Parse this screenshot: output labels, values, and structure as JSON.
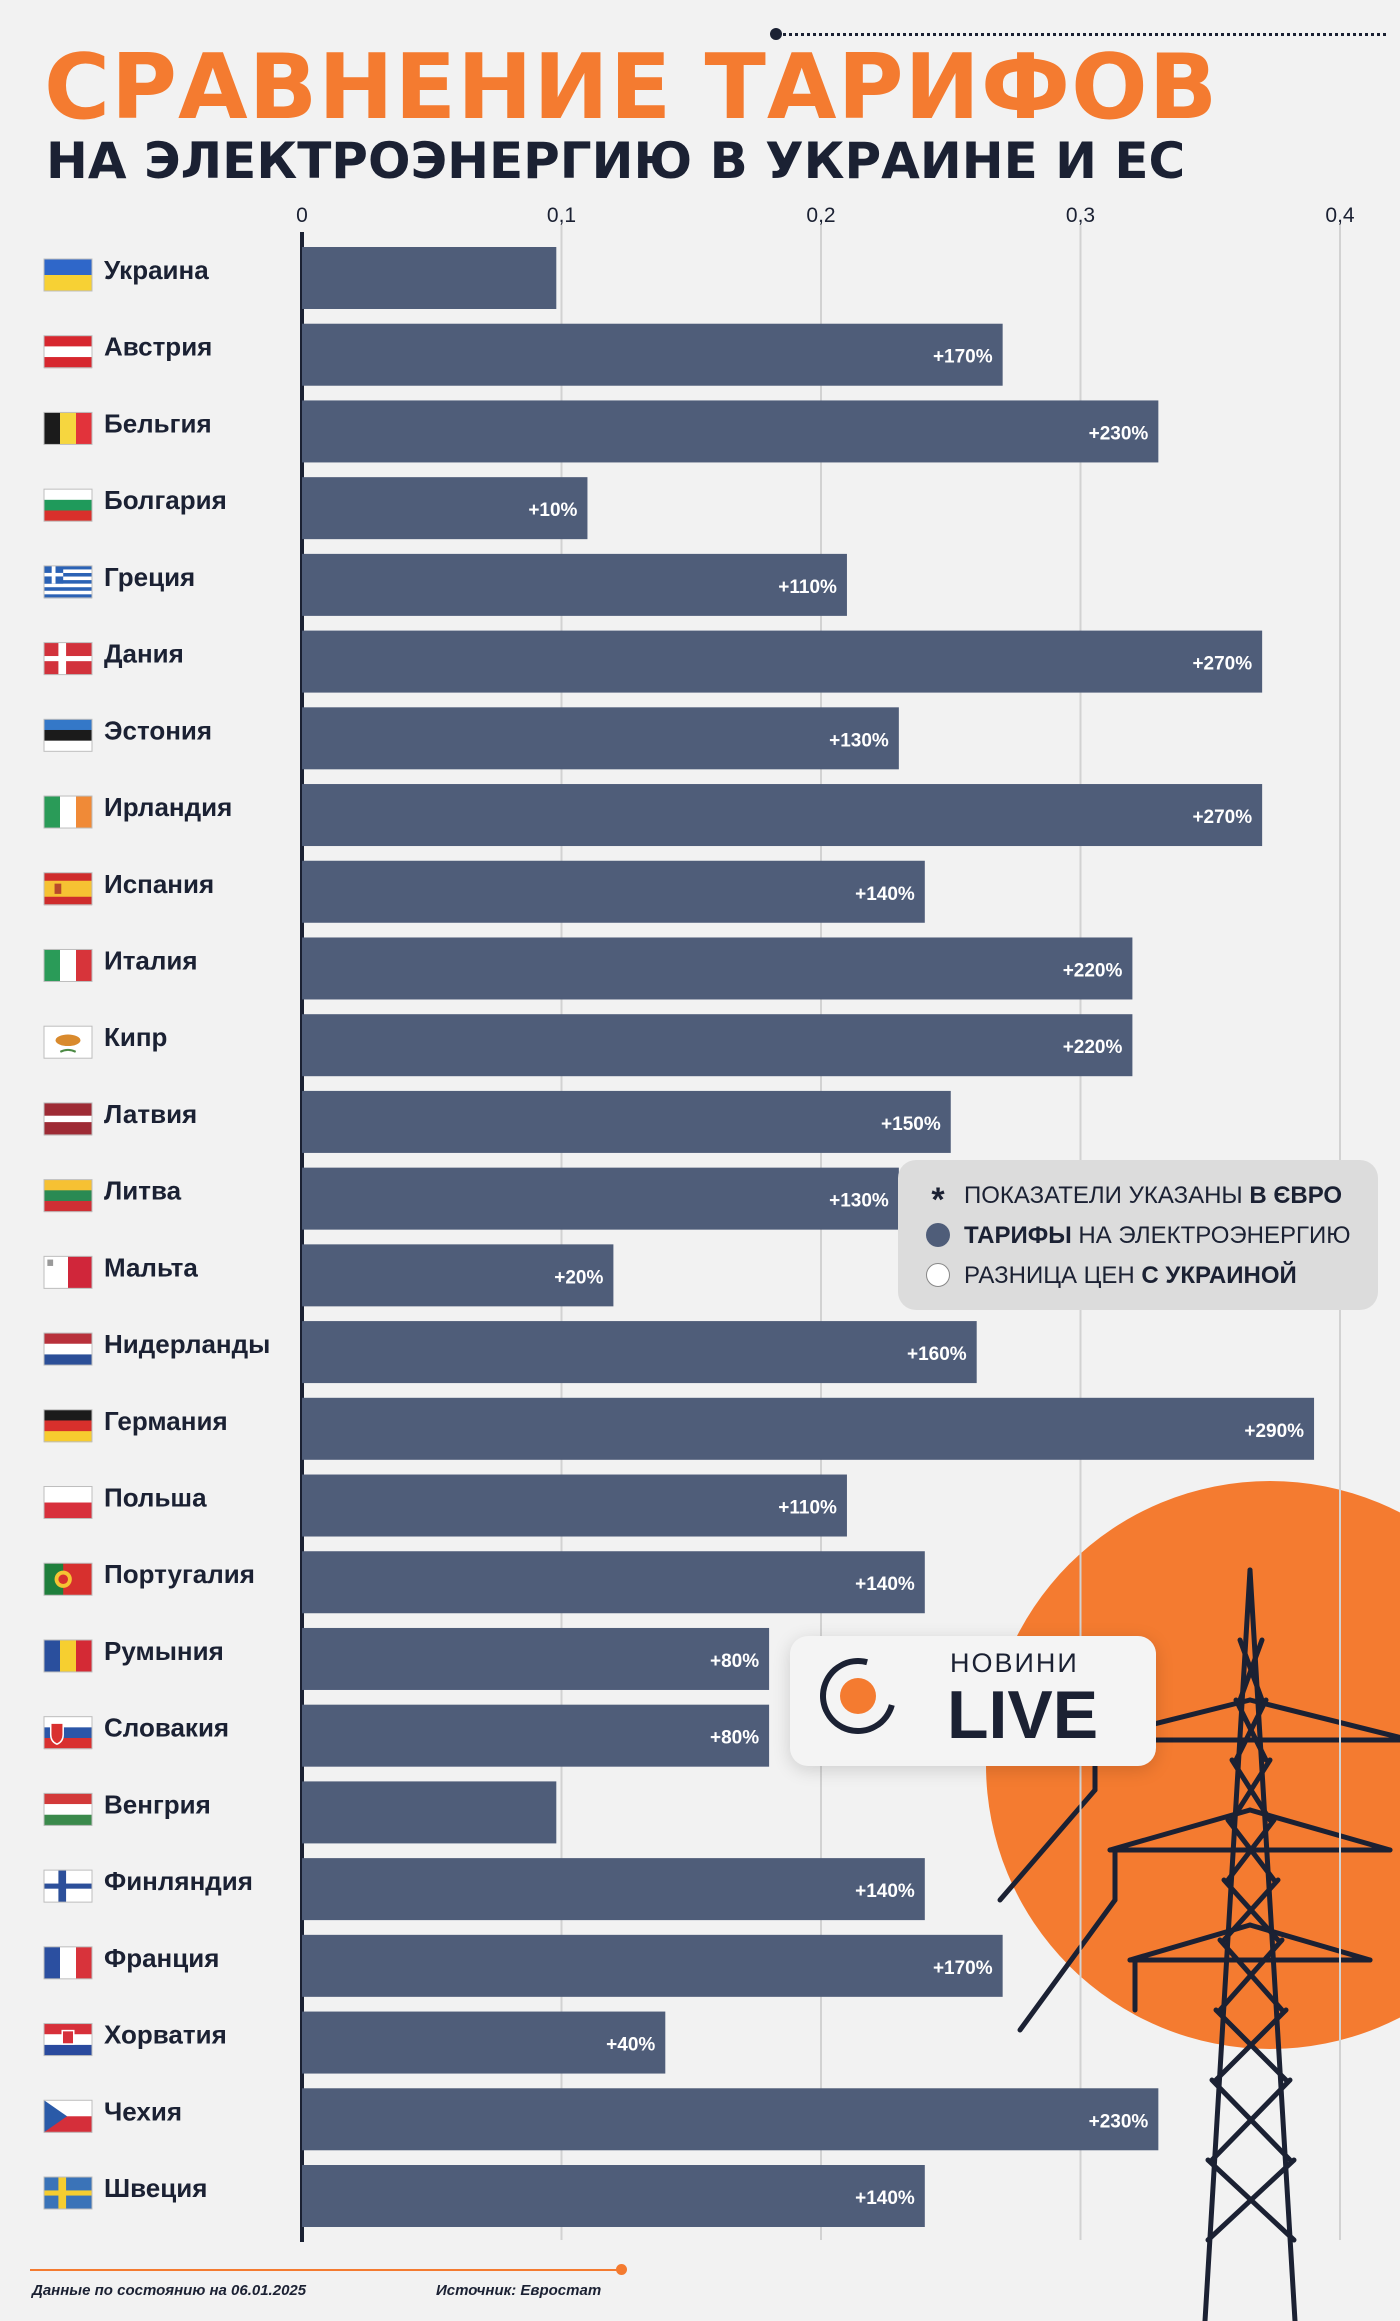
{
  "title": {
    "line1": "СРАВНЕНИЕ ТАРИФОВ",
    "line2": "НА ЭЛЕКТРОЭНЕРГИЮ В УКРАИНЕ И ЕС"
  },
  "legend": {
    "row1_text": "ПОКАЗАТЕЛИ УКАЗАНЫ ",
    "row1_bold": "В ЄВРО",
    "row2_bold": "ТАРИФЫ",
    "row2_text": " НА ЭЛЕКТРОЭНЕРГИЮ",
    "row3_text": "РАЗНИЦА ЦЕН ",
    "row3_bold": "С УКРАИНОЙ"
  },
  "footer": {
    "date": "Данные по состоянию на 06.01.2025",
    "source": "Источник: Евростат"
  },
  "logo": {
    "small": "НОВИНИ",
    "big": "LIVE"
  },
  "colors": {
    "bar": "#4f5d79",
    "accent": "#f47b30",
    "text": "#1b2133",
    "grid": "#d2d2d2"
  },
  "chart_data": {
    "type": "bar",
    "orientation": "horizontal",
    "title": "Сравнение тарифов на электроэнергию в Украине и ЕС",
    "xlim": [
      0,
      0.4
    ],
    "xticks": [
      "0",
      "0,1",
      "0,2",
      "0,3",
      "0,4"
    ],
    "xtick_values": [
      0,
      0.1,
      0.2,
      0.3,
      0.4
    ],
    "categories": [
      "Украина",
      "Австрия",
      "Бельгия",
      "Болгария",
      "Греция",
      "Дания",
      "Эстония",
      "Ирландия",
      "Испания",
      "Италия",
      "Кипр",
      "Латвия",
      "Литва",
      "Мальта",
      "Нидерланды",
      "Германия",
      "Польша",
      "Португалия",
      "Румыния",
      "Словакия",
      "Венгрия",
      "Финляндия",
      "Франция",
      "Хорватия",
      "Чехия",
      "Швеция"
    ],
    "values": [
      0.098,
      0.27,
      0.33,
      0.11,
      0.21,
      0.37,
      0.23,
      0.37,
      0.24,
      0.32,
      0.32,
      0.25,
      0.23,
      0.12,
      0.26,
      0.39,
      0.21,
      0.24,
      0.18,
      0.18,
      0.098,
      0.24,
      0.27,
      0.14,
      0.33,
      0.24
    ],
    "diff_labels": [
      "",
      "+170%",
      "+230%",
      "+10%",
      "+110%",
      "+270%",
      "+130%",
      "+270%",
      "+140%",
      "+220%",
      "+220%",
      "+150%",
      "+130%",
      "+20%",
      "+160%",
      "+290%",
      "+110%",
      "+140%",
      "+80%",
      "+80%",
      "",
      "+140%",
      "+170%",
      "+40%",
      "+230%",
      "+140%"
    ],
    "flags": [
      "flag-ukraine",
      "flag-austria",
      "flag-belgium",
      "flag-bulgaria",
      "flag-greece",
      "flag-denmark",
      "flag-estonia",
      "flag-ireland",
      "flag-spain",
      "flag-italy",
      "flag-cyprus",
      "flag-latvia",
      "flag-lithuania",
      "flag-malta",
      "flag-netherlands",
      "flag-germany",
      "flag-poland",
      "flag-portugal",
      "flag-romania",
      "flag-slovakia",
      "flag-hungary",
      "flag-finland",
      "flag-france",
      "flag-croatia",
      "flag-czechia",
      "flag-sweden"
    ]
  }
}
